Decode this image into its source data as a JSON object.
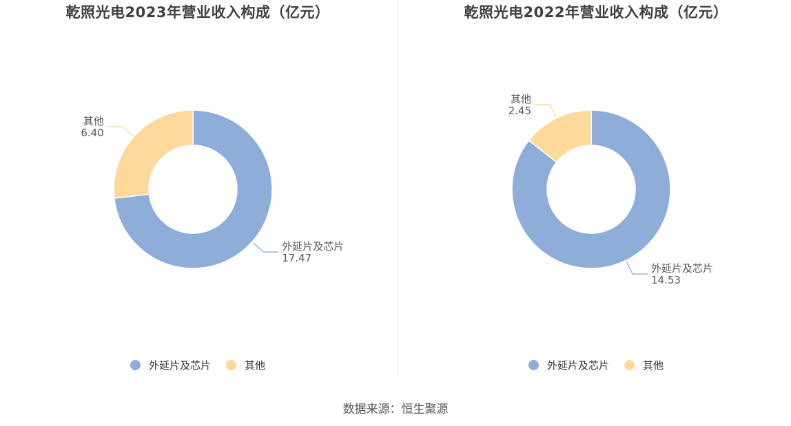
{
  "colors": {
    "series_1": "#8eadd9",
    "series_2": "#fdd99b",
    "label_text": "#555555",
    "title_text": "#404040"
  },
  "chart_data": [
    {
      "type": "pie",
      "title": "乾照光电2023年营业收入构成（亿元）",
      "slices": [
        {
          "label": "外延片及芯片",
          "value": 17.47,
          "value_text": "17.47"
        },
        {
          "label": "其他",
          "value": 6.4,
          "value_text": "6.40"
        }
      ],
      "legend": [
        "外延片及芯片",
        "其他"
      ],
      "legend_position": "bottom"
    },
    {
      "type": "pie",
      "title": "乾照光电2022年营业收入构成（亿元）",
      "slices": [
        {
          "label": "外延片及芯片",
          "value": 14.53,
          "value_text": "14.53"
        },
        {
          "label": "其他",
          "value": 2.45,
          "value_text": "2.45"
        }
      ],
      "legend": [
        "外延片及芯片",
        "其他"
      ],
      "legend_position": "bottom"
    }
  ],
  "footer": {
    "source": "数据来源：恒生聚源"
  }
}
